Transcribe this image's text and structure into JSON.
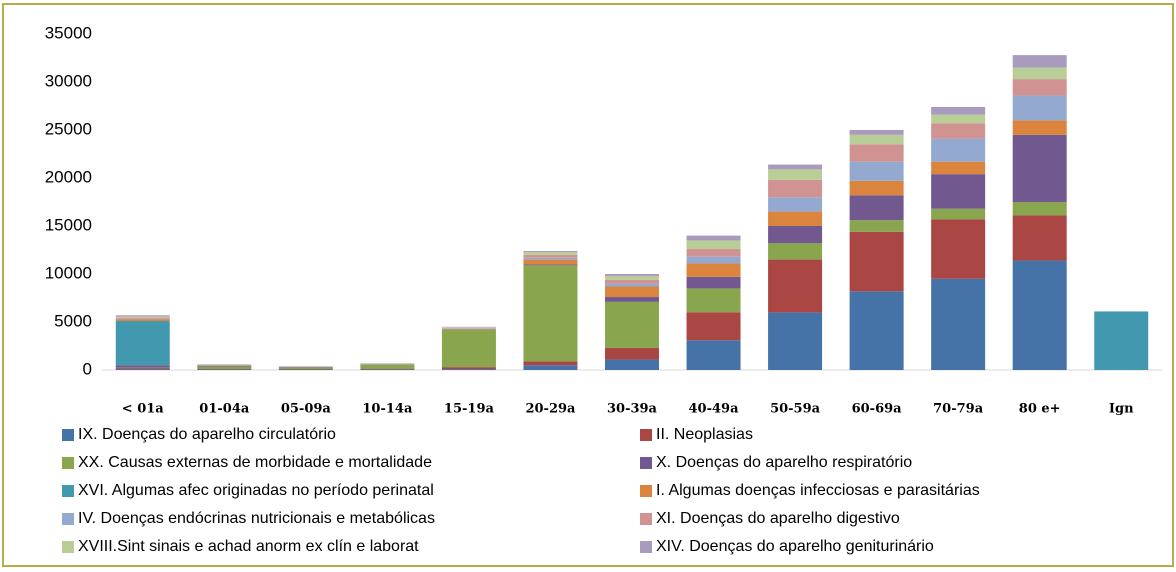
{
  "chart_data": {
    "type": "stacked_bar",
    "categories": [
      "< 01a",
      "01-04a",
      "05-09a",
      "10-14a",
      "15-19a",
      "20-29a",
      "30-39a",
      "40-49a",
      "50-59a",
      "60-69a",
      "70-79a",
      "80 e+",
      "Ign"
    ],
    "series": [
      {
        "name": "IX. Doenças do aparelho circulatório",
        "color": "#4572a7",
        "values": [
          100,
          50,
          50,
          50,
          100,
          500,
          1100,
          3100,
          6000,
          8200,
          9500,
          11400,
          0
        ]
      },
      {
        "name": "II. Neoplasias",
        "color": "#aa4643",
        "values": [
          100,
          50,
          50,
          50,
          200,
          400,
          1200,
          2900,
          5500,
          6200,
          6200,
          4700,
          0
        ]
      },
      {
        "name": "XX. Causas externas de morbidade e mortalidade",
        "color": "#89a54e",
        "values": [
          50,
          250,
          150,
          450,
          3900,
          10000,
          4800,
          2500,
          1700,
          1200,
          1100,
          1400,
          0
        ]
      },
      {
        "name": "X.  Doenças do aparelho respiratório",
        "color": "#71588f",
        "values": [
          250,
          100,
          50,
          25,
          50,
          100,
          500,
          1200,
          1800,
          2600,
          3600,
          7000,
          0
        ]
      },
      {
        "name": "XVI. Algumas afec originadas no período perinatal",
        "color": "#4198af",
        "values": [
          4600,
          0,
          0,
          0,
          0,
          0,
          0,
          0,
          0,
          0,
          0,
          0,
          6100
        ]
      },
      {
        "name": "I.  Algumas doenças infecciosas e parasitárias",
        "color": "#db843d",
        "values": [
          200,
          50,
          25,
          25,
          50,
          500,
          1100,
          1400,
          1500,
          1500,
          1300,
          1500,
          0
        ]
      },
      {
        "name": "IV. Doenças endócrinas nutricionais e metabólicas",
        "color": "#93a9cf",
        "values": [
          50,
          0,
          25,
          25,
          50,
          200,
          300,
          700,
          1500,
          2000,
          2400,
          2600,
          0
        ]
      },
      {
        "name": "XI. Doenças do aparelho digestivo",
        "color": "#d19392",
        "values": [
          100,
          0,
          0,
          0,
          50,
          300,
          400,
          800,
          1800,
          1800,
          1600,
          1700,
          0
        ]
      },
      {
        "name": "XVIII.Sint sinais e achad anorm ex clín e laborat",
        "color": "#b9cd96",
        "values": [
          100,
          50,
          25,
          50,
          50,
          300,
          400,
          900,
          1100,
          1000,
          900,
          1200,
          0
        ]
      },
      {
        "name": "XIV. Doenças do aparelho geniturinário",
        "color": "#a99bbd",
        "values": [
          150,
          50,
          25,
          25,
          50,
          100,
          200,
          500,
          500,
          500,
          800,
          1300,
          0
        ]
      }
    ],
    "ylim": [
      0,
      35000
    ],
    "yticks": [
      0,
      5000,
      10000,
      15000,
      20000,
      25000,
      30000,
      35000
    ]
  }
}
